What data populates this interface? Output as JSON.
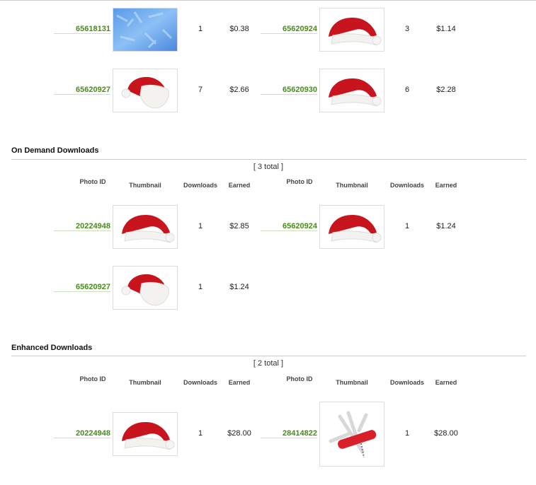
{
  "headers": {
    "photo_id": "Photo ID",
    "thumbnail": "Thumbnail",
    "downloads": "Downloads",
    "earned": "Earned"
  },
  "sections": [
    {
      "title": "",
      "total": "",
      "show_headers": false,
      "items": [
        {
          "id": "65618131",
          "thumb": "blue-texture",
          "downloads": "1",
          "earned": "$0.38"
        },
        {
          "id": "65620924",
          "thumb": "santa-hat",
          "downloads": "3",
          "earned": "$1.14"
        },
        {
          "id": "65620927",
          "thumb": "santa-hat-tilted",
          "downloads": "7",
          "earned": "$2.66"
        },
        {
          "id": "65620930",
          "thumb": "santa-hat",
          "downloads": "6",
          "earned": "$2.28"
        }
      ]
    },
    {
      "title": "On Demand Downloads",
      "total": "[ 3 total ]",
      "show_headers": true,
      "items": [
        {
          "id": "20224948",
          "thumb": "santa-hat",
          "downloads": "1",
          "earned": "$2.85"
        },
        {
          "id": "65620924",
          "thumb": "santa-hat",
          "downloads": "1",
          "earned": "$1.24"
        },
        {
          "id": "65620927",
          "thumb": "santa-hat-tilted",
          "downloads": "1",
          "earned": "$1.24"
        }
      ]
    },
    {
      "title": "Enhanced Downloads",
      "total": "[ 2 total ]",
      "show_headers": true,
      "items": [
        {
          "id": "20224948",
          "thumb": "santa-hat",
          "downloads": "1",
          "earned": "$28.00"
        },
        {
          "id": "28414822",
          "thumb": "swiss-army-knife",
          "downloads": "1",
          "earned": "$28.00"
        }
      ]
    }
  ]
}
